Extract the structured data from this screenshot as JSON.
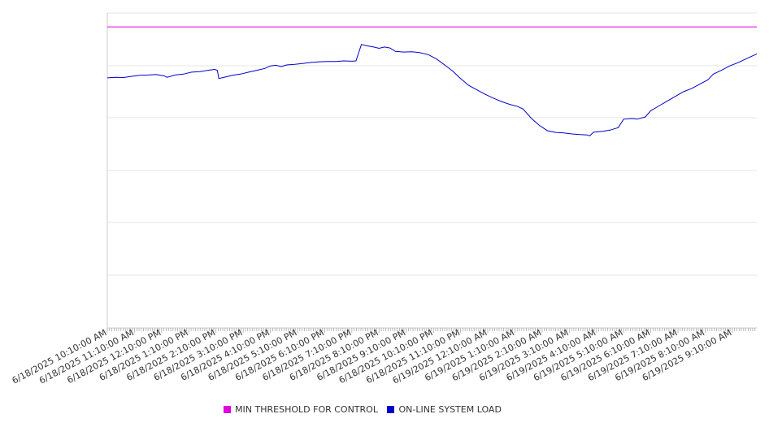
{
  "chart_data": {
    "type": "line",
    "title": "",
    "xlabel": "",
    "ylabel": "",
    "y_tick_labels_visible": false,
    "grid": "horizontal",
    "legend_position": "bottom-center",
    "x_tick_labels": [
      "6/18/2025 10:10:00 AM",
      "6/18/2025 11:10:00 AM",
      "6/18/2025 12:10:00 PM",
      "6/18/2025 1:10:00 PM",
      "6/18/2025 2:10:00 PM",
      "6/18/2025 3:10:00 PM",
      "6/18/2025 4:10:00 PM",
      "6/18/2025 5:10:00 PM",
      "6/18/2025 6:10:00 PM",
      "6/18/2025 7:10:00 PM",
      "6/18/2025 8:10:00 PM",
      "6/18/2025 9:10:00 PM",
      "6/18/2025 10:10:00 PM",
      "6/18/2025 11:10:00 PM",
      "6/19/2025 12:10:00 AM",
      "6/19/2025 1:10:00 AM",
      "6/19/2025 2:10:00 AM",
      "6/19/2025 3:10:00 AM",
      "6/19/2025 4:10:00 AM",
      "6/19/2025 5:10:00 AM",
      "6/19/2025 6:10:00 AM",
      "6/19/2025 7:10:00 AM",
      "6/19/2025 8:10:00 AM",
      "6/19/2025 9:10:00 AM"
    ],
    "y_range": [
      0,
      100
    ],
    "series": [
      {
        "name": "MIN THRESHOLD FOR CONTROL",
        "color": "#e000e0",
        "points": [
          [
            0,
            95.6
          ],
          [
            23.9,
            95.6
          ]
        ]
      },
      {
        "name": "ON-LINE SYSTEM LOAD",
        "color": "#0000cc",
        "points": [
          [
            0,
            79.4
          ],
          [
            0.3,
            79.6
          ],
          [
            0.6,
            79.5
          ],
          [
            0.9,
            79.9
          ],
          [
            1.2,
            80.2
          ],
          [
            1.5,
            80.3
          ],
          [
            1.8,
            80.5
          ],
          [
            2.1,
            80.0
          ],
          [
            2.2,
            79.6
          ],
          [
            2.5,
            80.3
          ],
          [
            2.8,
            80.6
          ],
          [
            3.1,
            81.2
          ],
          [
            3.4,
            81.4
          ],
          [
            3.7,
            81.8
          ],
          [
            3.95,
            82.1
          ],
          [
            4.05,
            81.8
          ],
          [
            4.1,
            79.2
          ],
          [
            4.3,
            79.6
          ],
          [
            4.6,
            80.2
          ],
          [
            4.9,
            80.6
          ],
          [
            5.2,
            81.2
          ],
          [
            5.5,
            81.8
          ],
          [
            5.8,
            82.4
          ],
          [
            6.0,
            83.2
          ],
          [
            6.2,
            83.4
          ],
          [
            6.4,
            83.0
          ],
          [
            6.6,
            83.5
          ],
          [
            6.9,
            83.7
          ],
          [
            7.2,
            84.0
          ],
          [
            7.5,
            84.3
          ],
          [
            7.8,
            84.5
          ],
          [
            8.1,
            84.6
          ],
          [
            8.4,
            84.6
          ],
          [
            8.7,
            84.8
          ],
          [
            9.0,
            84.7
          ],
          [
            9.15,
            84.8
          ],
          [
            9.35,
            90.0
          ],
          [
            9.55,
            89.6
          ],
          [
            9.8,
            89.2
          ],
          [
            10.0,
            88.8
          ],
          [
            10.2,
            89.2
          ],
          [
            10.4,
            88.9
          ],
          [
            10.6,
            87.8
          ],
          [
            10.9,
            87.6
          ],
          [
            11.2,
            87.7
          ],
          [
            11.5,
            87.4
          ],
          [
            11.8,
            86.8
          ],
          [
            12.1,
            85.5
          ],
          [
            12.4,
            83.6
          ],
          [
            12.7,
            81.6
          ],
          [
            13.0,
            79.2
          ],
          [
            13.3,
            77.0
          ],
          [
            13.6,
            75.6
          ],
          [
            13.9,
            74.2
          ],
          [
            14.2,
            73.0
          ],
          [
            14.5,
            71.9
          ],
          [
            14.8,
            71.0
          ],
          [
            15.1,
            70.3
          ],
          [
            15.3,
            69.5
          ],
          [
            15.6,
            66.6
          ],
          [
            15.9,
            64.3
          ],
          [
            16.2,
            62.6
          ],
          [
            16.5,
            62.1
          ],
          [
            16.8,
            61.9
          ],
          [
            17.1,
            61.6
          ],
          [
            17.4,
            61.4
          ],
          [
            17.65,
            61.3
          ],
          [
            17.75,
            61.0
          ],
          [
            17.9,
            62.2
          ],
          [
            18.2,
            62.4
          ],
          [
            18.5,
            62.8
          ],
          [
            18.8,
            63.6
          ],
          [
            19.0,
            66.3
          ],
          [
            19.3,
            66.5
          ],
          [
            19.5,
            66.3
          ],
          [
            19.8,
            67.0
          ],
          [
            20.0,
            69.0
          ],
          [
            20.3,
            70.5
          ],
          [
            20.6,
            72.0
          ],
          [
            20.9,
            73.5
          ],
          [
            21.2,
            75.0
          ],
          [
            21.5,
            76.0
          ],
          [
            21.8,
            77.4
          ],
          [
            22.1,
            78.8
          ],
          [
            22.3,
            80.6
          ],
          [
            22.6,
            81.8
          ],
          [
            22.9,
            83.2
          ],
          [
            23.2,
            84.2
          ],
          [
            23.5,
            85.4
          ],
          [
            23.9,
            87.0
          ]
        ]
      }
    ]
  }
}
